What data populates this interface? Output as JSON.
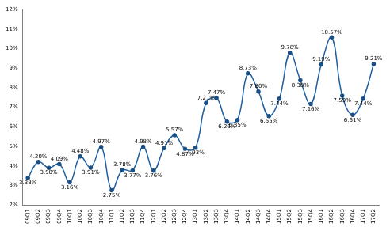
{
  "chart_data": {
    "type": "line",
    "categories": [
      "09Q1",
      "09Q2",
      "09Q3",
      "09Q4",
      "10Q1",
      "10Q2",
      "10Q3",
      "10Q4",
      "11Q1",
      "11Q2",
      "11Q3",
      "11Q4",
      "12Q1",
      "12Q2",
      "12Q3",
      "12Q4",
      "13Q1",
      "13Q2",
      "13Q3",
      "13Q4",
      "14Q1",
      "14Q2",
      "14Q3",
      "14Q4",
      "15Q1",
      "15Q2",
      "15Q3",
      "15Q4",
      "16Q1",
      "16Q2",
      "16Q3",
      "16Q4",
      "17Q1",
      "17Q2"
    ],
    "values": [
      3.38,
      4.2,
      3.9,
      4.09,
      3.16,
      4.48,
      3.91,
      4.97,
      2.75,
      3.78,
      3.77,
      4.98,
      3.76,
      4.91,
      5.57,
      4.87,
      4.93,
      7.21,
      7.47,
      6.26,
      6.35,
      8.73,
      7.8,
      6.55,
      7.44,
      9.78,
      8.38,
      7.16,
      9.19,
      10.57,
      7.59,
      6.61,
      7.44,
      9.21
    ],
    "value_labels": [
      "3.38%",
      "4.20%",
      "3.90%",
      "4.09%",
      "3.16%",
      "4.48%",
      "3.91%",
      "4.97%",
      "2.75%",
      "3.78%",
      "3.77%",
      "4.98%",
      "3.76%",
      "4.91%",
      "5.57%",
      "4.87%",
      "4.93%",
      "7.21%",
      "7.47%",
      "6.26%",
      "6.35%",
      "8.73%",
      "7.80%",
      "6.55%",
      "7.44%",
      "9.78%",
      "8.38%",
      "7.16%",
      "9.19%",
      "10.57%",
      "7.59%",
      "6.61%",
      "7.44%",
      "9.21%"
    ],
    "color": "#1f5fa0",
    "marker": "circle",
    "line_style": "solid",
    "data_labels": true,
    "grid": false,
    "ylim": [
      2,
      12
    ],
    "yticks": [
      {
        "value": 2,
        "label": "2%"
      },
      {
        "value": 3,
        "label": "3%"
      },
      {
        "value": 4,
        "label": "4%"
      },
      {
        "value": 5,
        "label": "5%"
      },
      {
        "value": 6,
        "label": "6%"
      },
      {
        "value": 7,
        "label": "7%"
      },
      {
        "value": 8,
        "label": "8%"
      },
      {
        "value": 9,
        "label": "9%"
      },
      {
        "value": 10,
        "label": "10%"
      },
      {
        "value": 11,
        "label": "11%"
      },
      {
        "value": 12,
        "label": "12%"
      }
    ]
  }
}
